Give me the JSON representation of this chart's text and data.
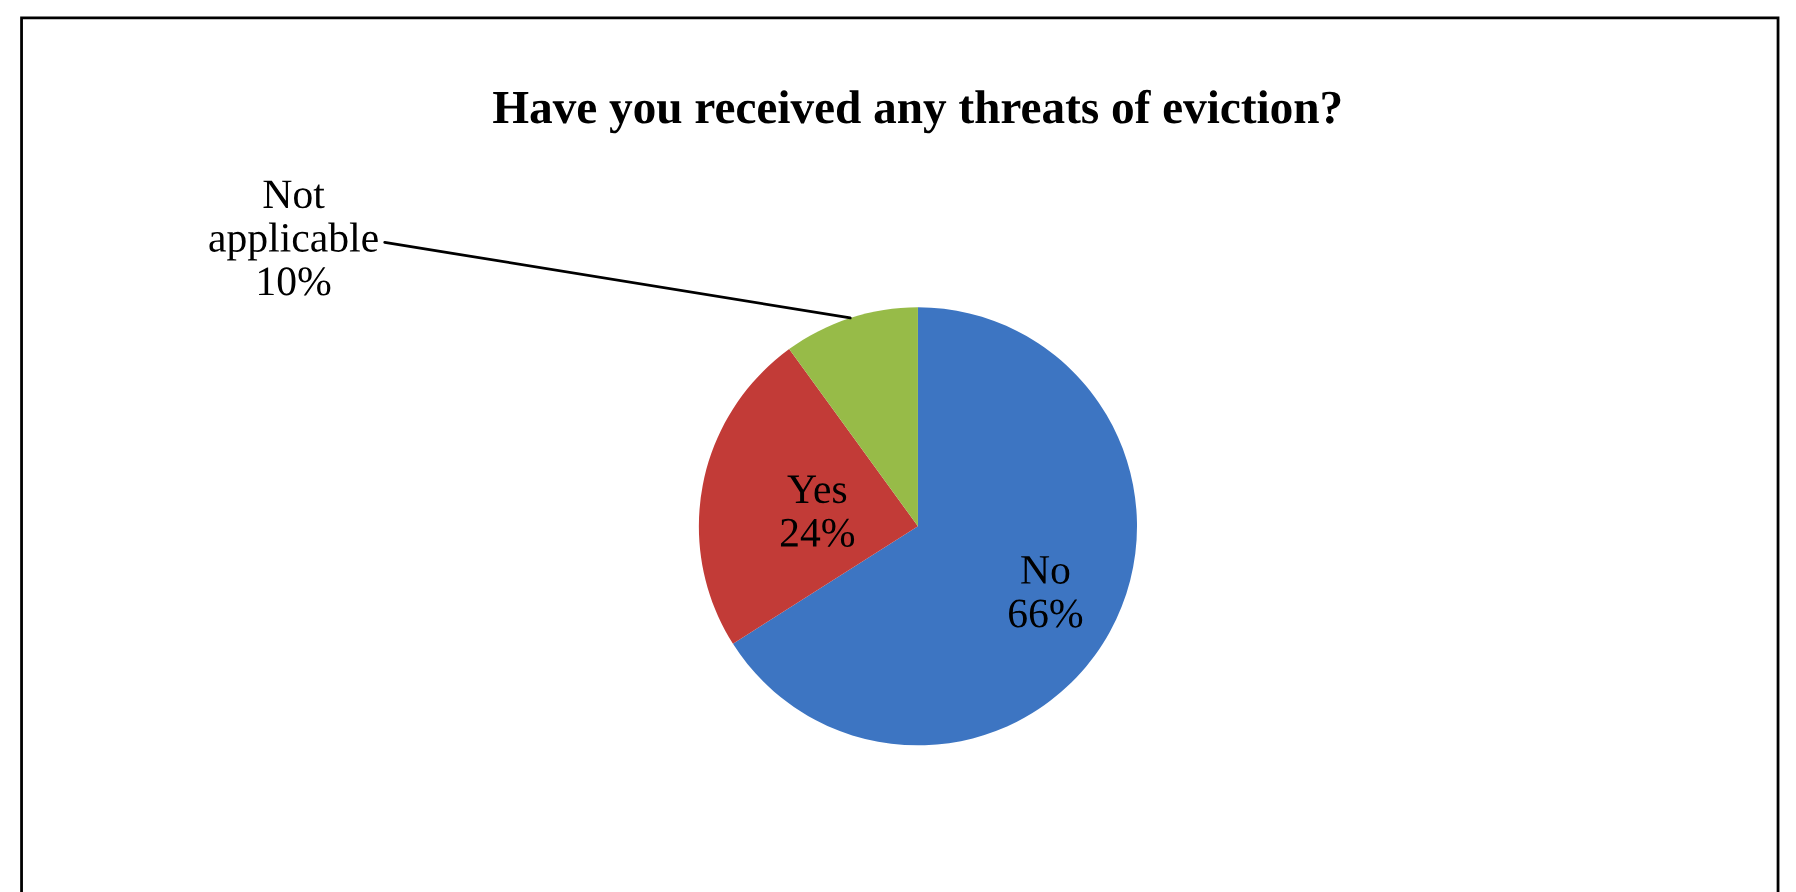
{
  "chart_data": {
    "type": "pie",
    "title": "Have you received any threats of eviction?",
    "categories": [
      "No",
      "Yes",
      "Not applicable"
    ],
    "values": [
      66,
      24,
      10
    ],
    "value_labels": [
      "66%",
      "24%",
      "10%"
    ],
    "colors": [
      "#3d75c2",
      "#c23b37",
      "#97bb48"
    ],
    "legend": false
  }
}
